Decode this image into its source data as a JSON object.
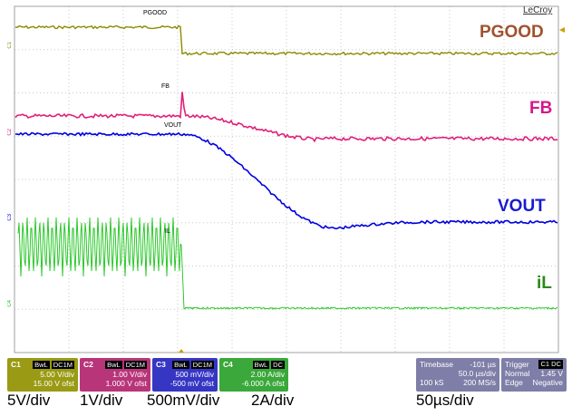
{
  "brand": "LeCroy",
  "traces": {
    "pgood": {
      "big_label": "PGOOD",
      "small_label": "PGOOD",
      "color": "#8a8a00",
      "label_color": "#a0522d",
      "marker": "C1"
    },
    "fb": {
      "big_label": "FB",
      "small_label": "FB",
      "color": "#e0207a",
      "label_color": "#d4178a",
      "marker": "C2"
    },
    "vout": {
      "big_label": "VOUT",
      "small_label": "VOUT",
      "color": "#0000e0",
      "label_color": "#1a1ad0",
      "marker": "C3"
    },
    "il": {
      "big_label": "iL",
      "small_label": "IL",
      "color": "#1bc41b",
      "label_color": "#2a8a1a",
      "marker": "C4"
    }
  },
  "channels": [
    {
      "name": "C1",
      "chips": [
        "BwL",
        "DC1M"
      ],
      "scale": "5.00 V/div",
      "offset": "15.00 V ofst",
      "bg": "#9a9a14"
    },
    {
      "name": "C2",
      "chips": [
        "BwL",
        "DC1M"
      ],
      "scale": "1.00 V/div",
      "offset": "1.000 V ofst",
      "bg": "#b8357a"
    },
    {
      "name": "C3",
      "chips": [
        "BwL",
        "DC1M"
      ],
      "scale": "500 mV/div",
      "offset": "-500 mV ofst",
      "bg": "#3636c4"
    },
    {
      "name": "C4",
      "chips": [
        "BwL",
        "DC"
      ],
      "scale": "2.00 A/div",
      "offset": "-6.000 A ofst",
      "bg": "#3aa83a"
    }
  ],
  "timebase": {
    "label": "Timebase",
    "delay": "-101 µs",
    "per_div": "50.0 µs/div",
    "samples": "100 kS",
    "rate": "200 MS/s"
  },
  "trigger": {
    "label": "Trigger",
    "chip": "C1 DC",
    "mode": "Normal",
    "level": "1.45 V",
    "type": "Edge",
    "slope": "Negative"
  },
  "bottom_labels": {
    "c1": "5V/div",
    "c2": "1V/div",
    "c3": "500mV/div",
    "c4": "2A/div",
    "time": "50µs/div"
  }
}
